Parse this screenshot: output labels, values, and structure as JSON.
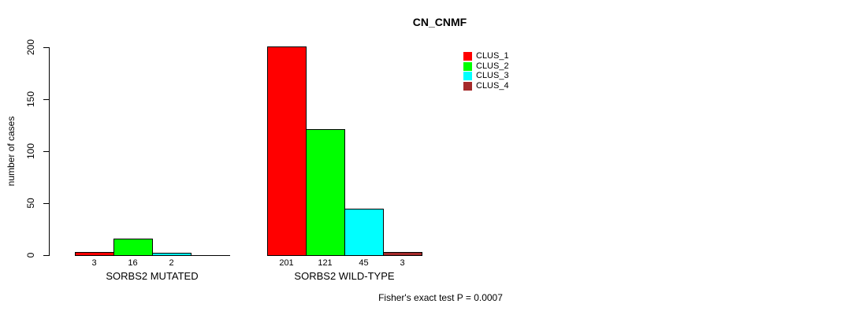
{
  "page": {
    "background": "#ffffff",
    "text_color": "#000000",
    "axis_color": "#000000"
  },
  "chart_data": {
    "type": "bar",
    "title": "CN_CNMF",
    "xlabel": "",
    "ylabel": "number of cases",
    "categories": [
      "SORBS2 MUTATED",
      "SORBS2 WILD-TYPE"
    ],
    "series": [
      {
        "name": "CLUS_1",
        "color": "#ff0000",
        "values": [
          3,
          201
        ]
      },
      {
        "name": "CLUS_2",
        "color": "#00ff00",
        "values": [
          16,
          121
        ]
      },
      {
        "name": "CLUS_3",
        "color": "#00ffff",
        "values": [
          2,
          45
        ]
      },
      {
        "name": "CLUS_4",
        "color": "#a52a2a",
        "values": [
          0,
          3
        ]
      }
    ],
    "bar_value_labels": [
      [
        "3",
        "16",
        "2",
        ""
      ],
      [
        "201",
        "121",
        "45",
        "3"
      ]
    ],
    "ylim": [
      0,
      200
    ],
    "yticks": [
      "0",
      "50",
      "100",
      "150",
      "200"
    ],
    "grid": false,
    "legend_position": "top-right",
    "annotation": "Fisher's exact test P = 0.0007"
  }
}
